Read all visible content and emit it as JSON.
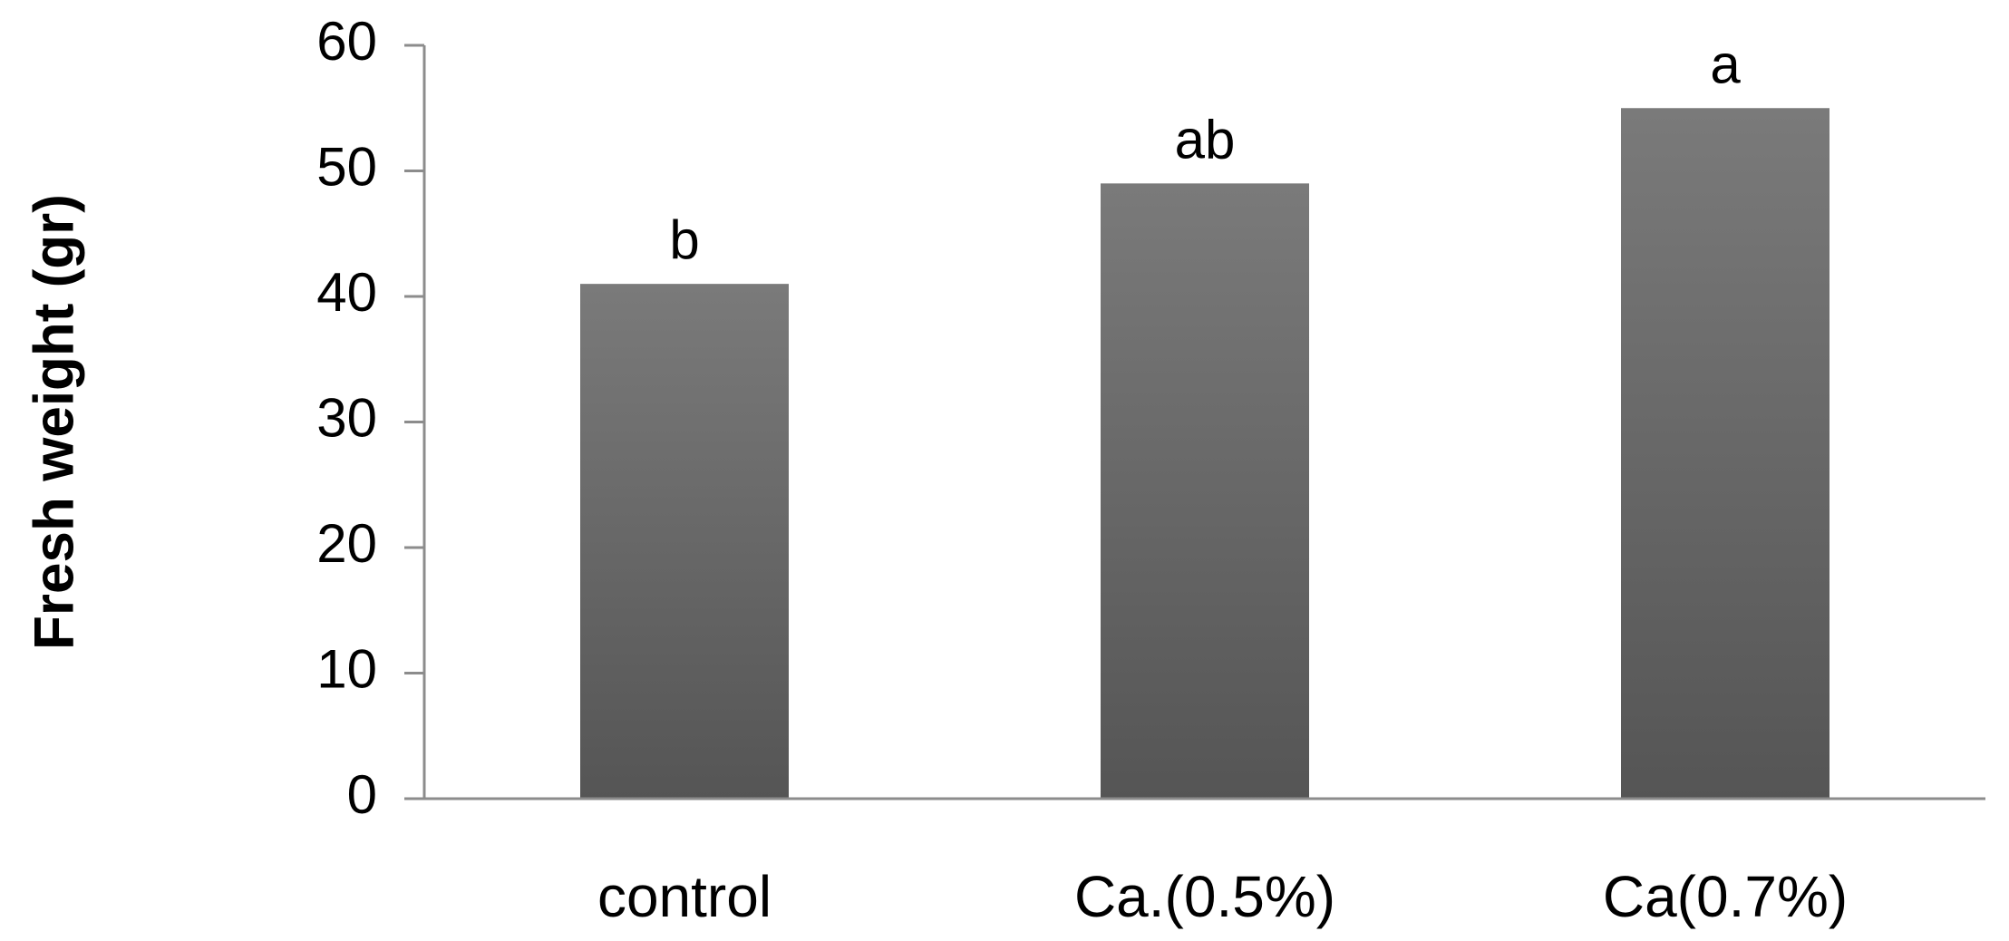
{
  "chart_data": {
    "type": "bar",
    "title": "",
    "xlabel": "",
    "ylabel": "Fresh weight (gr)",
    "categories": [
      "control",
      "Ca.(0.5%)",
      "Ca(0.7%)"
    ],
    "values": [
      41,
      49,
      55
    ],
    "data_labels": [
      "b",
      "ab",
      "a"
    ],
    "ylim": [
      0,
      60
    ],
    "yticks": [
      0,
      10,
      20,
      30,
      40,
      50,
      60
    ],
    "ytick_labels": [
      "0",
      "10",
      "20",
      "30",
      "40",
      "50",
      "60"
    ],
    "grid": false,
    "legend": "none",
    "bar_color_top": "#7a7a7a",
    "bar_color_bottom": "#555555",
    "axis_color": "#8c8c8c"
  }
}
